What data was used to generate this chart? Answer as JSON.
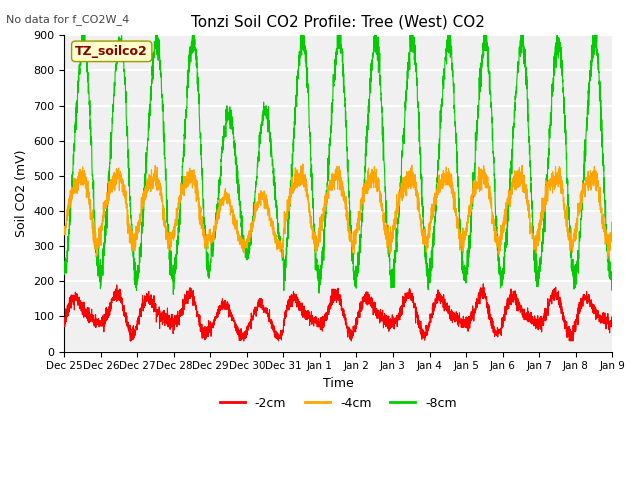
{
  "title": "Tonzi Soil CO2 Profile: Tree (West) CO2",
  "subtitle": "No data for f_CO2W_4",
  "ylabel": "Soil CO2 (mV)",
  "xlabel": "Time",
  "legend_label": "TZ_soilco2",
  "ylim": [
    0,
    900
  ],
  "series_labels": [
    "-2cm",
    "-4cm",
    "-8cm"
  ],
  "series_colors": [
    "#ff0000",
    "#ffa500",
    "#00cc00"
  ],
  "x_tick_labels": [
    "Dec 25",
    "Dec 26",
    "Dec 27",
    "Dec 28",
    "Dec 29",
    "Dec 30",
    "Dec 31",
    "Jan 1",
    "Jan 2",
    "Jan 3",
    "Jan 4",
    "Jan 5",
    "Jan 6",
    "Jan 7",
    "Jan 8",
    "Jan 9"
  ],
  "background_color": "#ffffff",
  "plot_bg_color": "#f0f0f0",
  "grid_color": "#ffffff",
  "num_points": 3360
}
